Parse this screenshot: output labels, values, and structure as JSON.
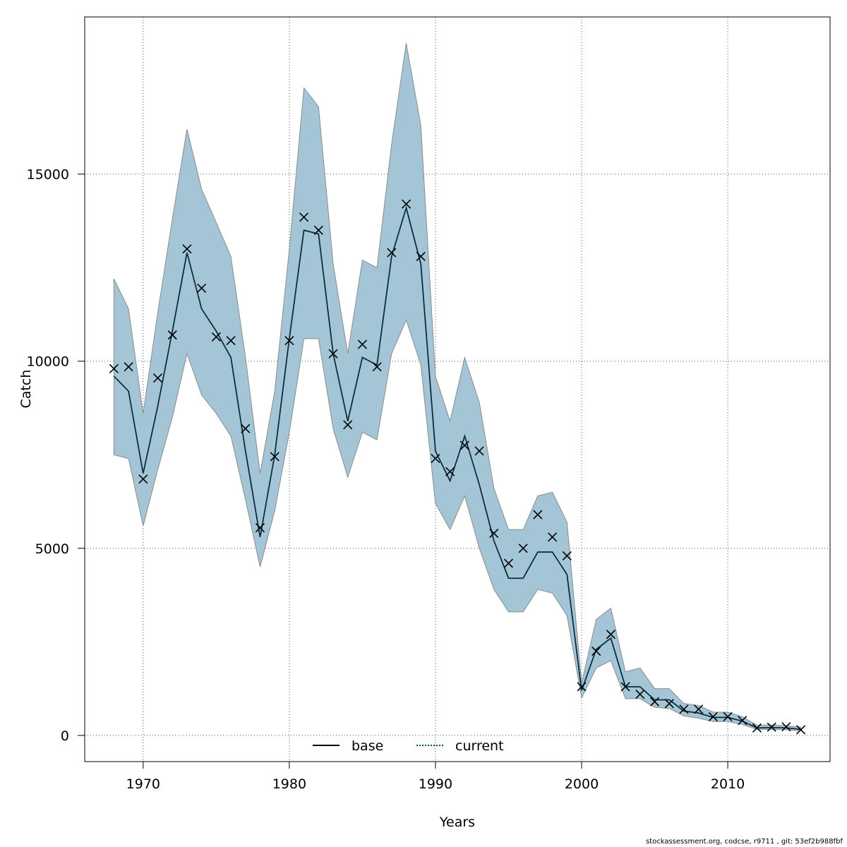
{
  "chart_data": {
    "type": "line",
    "xlabel": "Years",
    "ylabel": "Catch",
    "xlim": [
      1966,
      2017
    ],
    "ylim": [
      -700,
      19200
    ],
    "xticks": [
      1970,
      1980,
      1990,
      2000,
      2010
    ],
    "yticks": [
      0,
      5000,
      10000,
      15000
    ],
    "grid": true,
    "legend_placement": "bottom-center",
    "colors": {
      "band": "#a3c5d6",
      "band_edge": "#8c8c8c",
      "current": "#0b4d6e",
      "base": "#000000"
    },
    "series": [
      {
        "name": "base",
        "style": "solid"
      },
      {
        "name": "current",
        "style": "dotted"
      }
    ],
    "x": [
      1968,
      1969,
      1970,
      1971,
      1972,
      1973,
      1974,
      1975,
      1976,
      1977,
      1978,
      1979,
      1980,
      1981,
      1982,
      1983,
      1984,
      1985,
      1986,
      1987,
      1988,
      1989,
      1990,
      1991,
      1992,
      1993,
      1994,
      1995,
      1996,
      1997,
      1998,
      1999,
      2000,
      2001,
      2002,
      2003,
      2004,
      2005,
      2006,
      2007,
      2008,
      2009,
      2010,
      2011,
      2012,
      2013,
      2014,
      2015
    ],
    "current": [
      9600,
      9200,
      7000,
      8800,
      10800,
      12900,
      11400,
      10800,
      10100,
      7600,
      5300,
      7500,
      10600,
      13500,
      13400,
      10200,
      8400,
      10100,
      9900,
      12800,
      14100,
      12600,
      7600,
      6800,
      8000,
      6700,
      5200,
      4200,
      4200,
      4900,
      4900,
      4300,
      1200,
      2300,
      2600,
      1300,
      1300,
      950,
      950,
      650,
      600,
      480,
      480,
      380,
      200,
      210,
      200,
      160
    ],
    "upper": [
      12200,
      11400,
      8600,
      11300,
      13800,
      16200,
      14600,
      13700,
      12800,
      10100,
      7000,
      9200,
      13000,
      17300,
      16800,
      12600,
      10200,
      12700,
      12500,
      15800,
      18500,
      16300,
      9600,
      8400,
      10100,
      8900,
      6600,
      5500,
      5500,
      6400,
      6500,
      5700,
      1400,
      3100,
      3400,
      1700,
      1800,
      1250,
      1250,
      850,
      800,
      620,
      620,
      500,
      270,
      280,
      260,
      220
    ],
    "lower": [
      7500,
      7400,
      5600,
      7100,
      8500,
      10200,
      9100,
      8600,
      8000,
      6300,
      4500,
      6000,
      8100,
      10600,
      10600,
      8200,
      6900,
      8100,
      7900,
      10200,
      11100,
      9900,
      6200,
      5500,
      6400,
      5000,
      3900,
      3300,
      3300,
      3900,
      3800,
      3200,
      1000,
      1800,
      2000,
      980,
      980,
      750,
      720,
      520,
      460,
      370,
      370,
      290,
      160,
      160,
      150,
      120
    ],
    "observed": [
      9800,
      9850,
      6850,
      9550,
      10700,
      13000,
      11950,
      10650,
      10550,
      8200,
      5550,
      7450,
      10550,
      13850,
      13500,
      10200,
      8300,
      10450,
      9850,
      12900,
      14200,
      12800,
      7400,
      7050,
      7750,
      7600,
      5400,
      4600,
      5000,
      5900,
      5300,
      4800,
      1300,
      2250,
      2700,
      1300,
      1100,
      900,
      850,
      700,
      700,
      500,
      500,
      400,
      200,
      220,
      230,
      150
    ]
  },
  "footer": "stockassessment.org, codcse, r9711 , git: 53ef2b988fbf"
}
